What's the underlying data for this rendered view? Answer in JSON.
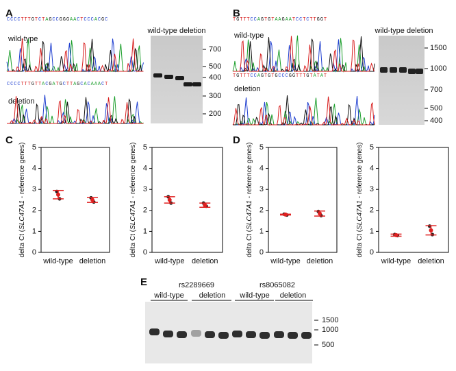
{
  "figure": {
    "A": {
      "label": "A",
      "seq_wt": "CCCCTTTGTCTAGCCGGGAACTCCCACGC",
      "seq_del": "CCCCTTTGTTACGATGCTTAGCACAAACT",
      "wt": "wild-type",
      "del": "deletion",
      "gel_header": "wild-type deletion",
      "markers": [
        "700",
        "500",
        "400",
        "300",
        "200"
      ]
    },
    "B": {
      "label": "B",
      "seq_wt": "TGTTTCCAGTGTAAGAATCCTCTTGGT",
      "seq_del": "TGTTTCCAGTGTGCCCGGTTTGTATAT",
      "wt": "wild-type",
      "del": "deletion",
      "gel_header": "wild-type deletion",
      "markers": [
        "1500",
        "1000",
        "700",
        "500",
        "400"
      ]
    },
    "C": {
      "label": "C"
    },
    "D": {
      "label": "D"
    },
    "E": {
      "label": "E",
      "snp1": "rs2289669",
      "snp2": "rs8065082",
      "groups": [
        "wild-type",
        "deletion",
        "wild-type",
        "deletion"
      ],
      "markers": [
        "1500",
        "1000",
        "500"
      ]
    }
  },
  "chart_data": [
    {
      "type": "dot",
      "ylabel": [
        "delta Ct (",
        "SLC47A1",
        " - reference genes)"
      ],
      "categories": [
        "wild-type",
        "deletion"
      ],
      "points": [
        [
          2.9,
          2.75,
          2.55
        ],
        [
          2.6,
          2.5,
          2.4
        ]
      ],
      "means": [
        2.75,
        2.5
      ],
      "errors": [
        0.2,
        0.12
      ],
      "ylim": [
        0,
        5
      ],
      "yticks": [
        0,
        1,
        2,
        3,
        4,
        5
      ],
      "color": "#e02020"
    },
    {
      "type": "dot",
      "ylabel": [
        "delta Ct (",
        "SLC47A1",
        " - reference genes)"
      ],
      "categories": [
        "wild-type",
        "deletion"
      ],
      "points": [
        [
          2.65,
          2.5,
          2.35
        ],
        [
          2.35,
          2.25,
          2.2
        ]
      ],
      "means": [
        2.5,
        2.25
      ],
      "errors": [
        0.15,
        0.1
      ],
      "ylim": [
        0,
        5
      ],
      "yticks": [
        0,
        1,
        2,
        3,
        4,
        5
      ],
      "color": "#e02020"
    },
    {
      "type": "dot",
      "ylabel": [
        "delta Ct (",
        "SLC47A1",
        " - reference genes)"
      ],
      "categories": [
        "wild-type",
        "deletion"
      ],
      "points": [
        [
          1.82,
          1.8,
          1.78
        ],
        [
          1.95,
          1.85,
          1.75
        ]
      ],
      "means": [
        1.8,
        1.85
      ],
      "errors": [
        0.02,
        0.12
      ],
      "ylim": [
        0,
        5
      ],
      "yticks": [
        0,
        1,
        2,
        3,
        4,
        5
      ],
      "color": "#e02020"
    },
    {
      "type": "dot",
      "ylabel": [
        "delta Ct (",
        "SLC47A1",
        " - reference genes)"
      ],
      "categories": [
        "wild-type",
        "deletion"
      ],
      "points": [
        [
          0.85,
          0.82,
          0.8
        ],
        [
          1.25,
          1.05,
          0.85
        ]
      ],
      "means": [
        0.82,
        1.05
      ],
      "errors": [
        0.05,
        0.22
      ],
      "ylim": [
        0,
        5
      ],
      "yticks": [
        0,
        1,
        2,
        3,
        4,
        5
      ],
      "color": "#e02020"
    }
  ]
}
